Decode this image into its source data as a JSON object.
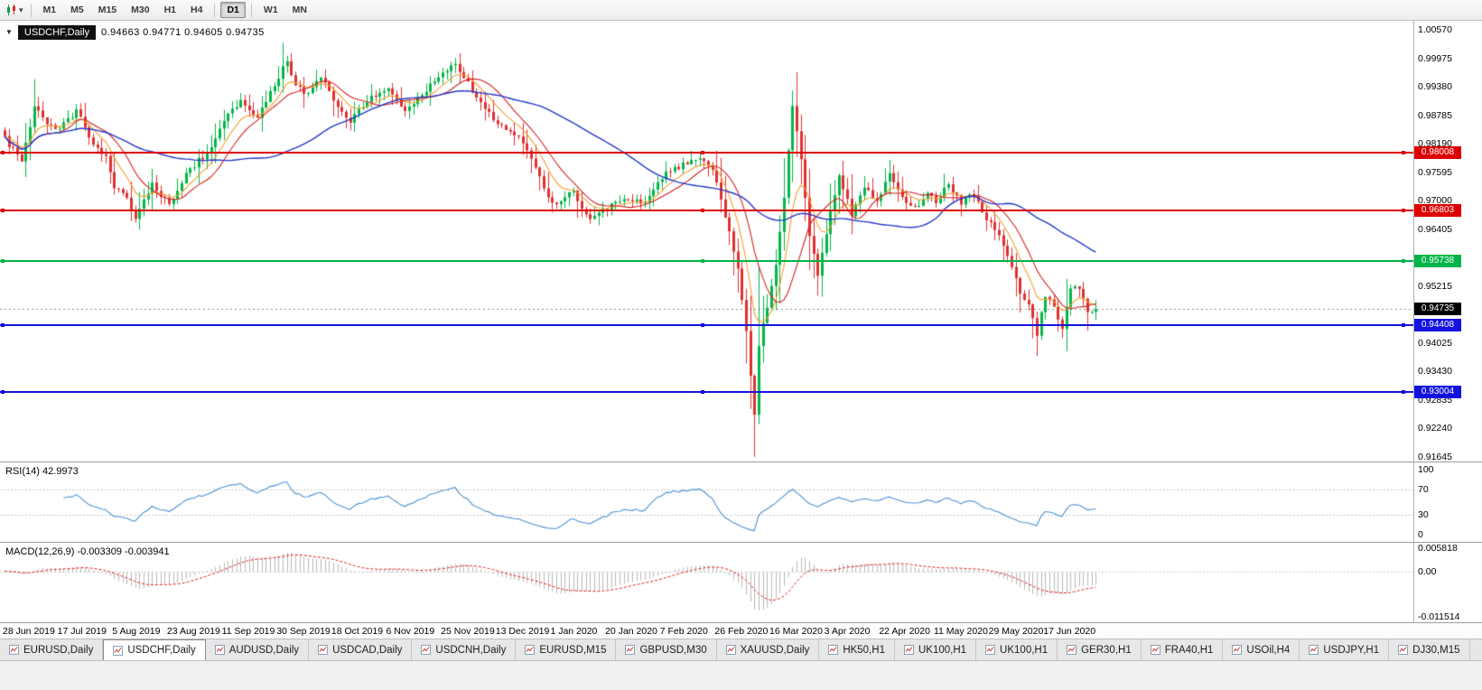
{
  "icons": {
    "toolbar_caret": "▾",
    "toolbar_chart_icon": "mini-candlestick",
    "chart_marker_icon": "▼",
    "tab_chart_icon": "mini-line-chart"
  },
  "toolbar": {
    "timeframes": [
      {
        "label": "M1",
        "active": false
      },
      {
        "label": "M5",
        "active": false
      },
      {
        "label": "M15",
        "active": false
      },
      {
        "label": "M30",
        "active": false
      },
      {
        "label": "H1",
        "active": false
      },
      {
        "label": "H4",
        "active": false,
        "group_end": true
      },
      {
        "label": "D1",
        "active": true,
        "group_end": true
      },
      {
        "label": "W1",
        "active": false
      },
      {
        "label": "MN",
        "active": false
      }
    ]
  },
  "chart": {
    "symbol_label": "USDCHF,Daily",
    "ohlc_text": "0.94663 0.94771 0.94605 0.94735",
    "open": "0.94663",
    "high": "0.94771",
    "low": "0.94605",
    "close": "0.94735"
  },
  "price_axis": {
    "min": 0.91645,
    "max": 1.0057,
    "labels": [
      {
        "label": "1.00570",
        "value": 1.0057
      },
      {
        "label": "0.99975",
        "value": 0.99975
      },
      {
        "label": "0.99380",
        "value": 0.9938
      },
      {
        "label": "0.98785",
        "value": 0.98785
      },
      {
        "label": "0.98190",
        "value": 0.9819
      },
      {
        "label": "0.97595",
        "value": 0.97595
      },
      {
        "label": "0.97000",
        "value": 0.97
      },
      {
        "label": "0.96405",
        "value": 0.96405
      },
      {
        "label": "0.95215",
        "value": 0.95215
      },
      {
        "label": "0.94025",
        "value": 0.94025
      },
      {
        "label": "0.93430",
        "value": 0.9343
      },
      {
        "label": "0.92835",
        "value": 0.92835
      },
      {
        "label": "0.92240",
        "value": 0.9224
      },
      {
        "label": "0.91645",
        "value": 0.91645
      }
    ]
  },
  "levels": [
    {
      "label": "0.98008",
      "value": 0.98008,
      "color": "#dd0000"
    },
    {
      "label": "0.96803",
      "value": 0.96803,
      "color": "#dd0000"
    },
    {
      "label": "0.95738",
      "value": 0.95738,
      "color": "#00b44a"
    },
    {
      "label": "0.94408",
      "value": 0.94408,
      "color": "#1313dd"
    },
    {
      "label": "0.93004",
      "value": 0.93004,
      "color": "#1313dd"
    }
  ],
  "current_price": {
    "label": "0.94735",
    "value": 0.94735,
    "color": "#000000"
  },
  "rsi": {
    "title": "RSI(14) 42.9973",
    "axis": [
      {
        "label": "100",
        "value": 100
      },
      {
        "label": "70",
        "value": 70
      },
      {
        "label": "30",
        "value": 30
      },
      {
        "label": "0",
        "value": 0
      }
    ],
    "guide_levels": [
      70,
      30
    ],
    "line_color": "#4a90d2"
  },
  "macd": {
    "title": "MACD(12,26,9) -0.003309 -0.003941",
    "axis": [
      {
        "label": "0.005818",
        "value": 0.005818
      },
      {
        "label": "0.00",
        "value": 0
      },
      {
        "label": "-0.011514",
        "value": -0.011514
      }
    ],
    "range_max": 0.005818,
    "range_min": -0.011514,
    "histogram_color": "#b8b8b8",
    "signal_color": "#e02020"
  },
  "date_axis": [
    "28 Jun 2019",
    "17 Jul 2019",
    "5 Aug 2019",
    "23 Aug 2019",
    "11 Sep 2019",
    "30 Sep 2019",
    "18 Oct 2019",
    "6 Nov 2019",
    "25 Nov 2019",
    "13 Dec 2019",
    "1 Jan 2020",
    "20 Jan 2020",
    "7 Feb 2020",
    "26 Feb 2020",
    "16 Mar 2020",
    "3 Apr 2020",
    "22 Apr 2020",
    "11 May 2020",
    "29 May 2020",
    "17 Jun 2020"
  ],
  "tabs": [
    {
      "label": "EURUSD,Daily",
      "active": false
    },
    {
      "label": "USDCHF,Daily",
      "active": true
    },
    {
      "label": "AUDUSD,Daily",
      "active": false
    },
    {
      "label": "USDCAD,Daily",
      "active": false
    },
    {
      "label": "USDCNH,Daily",
      "active": false
    },
    {
      "label": "EURUSD,M15",
      "active": false
    },
    {
      "label": "GBPUSD,M30",
      "active": false
    },
    {
      "label": "XAUUSD,Daily",
      "active": false
    },
    {
      "label": "HK50,H1",
      "active": false
    },
    {
      "label": "UK100,H1",
      "active": false
    },
    {
      "label": "UK100,H1",
      "active": false
    },
    {
      "label": "GER30,H1",
      "active": false
    },
    {
      "label": "FRA40,H1",
      "active": false
    },
    {
      "label": "USOil,H4",
      "active": false
    },
    {
      "label": "USDJPY,H1",
      "active": false
    },
    {
      "label": "DJ30,M15",
      "active": false
    }
  ],
  "chart_data": {
    "type": "candlestick",
    "symbol": "USDCHF",
    "timeframe": "Daily",
    "x_range": [
      "28 Jun 2019",
      "17 Jun 2020"
    ],
    "y_range": [
      0.91645,
      1.0057
    ],
    "candle_count": 260,
    "bars_per_date_label": 13,
    "close_anchors": [
      [
        0,
        0.983
      ],
      [
        4,
        0.978
      ],
      [
        7,
        0.99
      ],
      [
        10,
        0.9862
      ],
      [
        13,
        0.985
      ],
      [
        17,
        0.9888
      ],
      [
        21,
        0.982
      ],
      [
        24,
        0.9788
      ],
      [
        26,
        0.973
      ],
      [
        29,
        0.97
      ],
      [
        31,
        0.966
      ],
      [
        35,
        0.9738
      ],
      [
        39,
        0.969
      ],
      [
        44,
        0.9768
      ],
      [
        48,
        0.98
      ],
      [
        52,
        0.987
      ],
      [
        56,
        0.9906
      ],
      [
        60,
        0.9876
      ],
      [
        63,
        0.993
      ],
      [
        67,
        0.999
      ],
      [
        69,
        0.9944
      ],
      [
        71,
        0.992
      ],
      [
        75,
        0.9962
      ],
      [
        78,
        0.9906
      ],
      [
        82,
        0.9866
      ],
      [
        87,
        0.9916
      ],
      [
        91,
        0.9932
      ],
      [
        95,
        0.9882
      ],
      [
        100,
        0.993
      ],
      [
        104,
        0.9964
      ],
      [
        107,
        0.9988
      ],
      [
        111,
        0.993
      ],
      [
        117,
        0.986
      ],
      [
        122,
        0.9832
      ],
      [
        127,
        0.9752
      ],
      [
        130,
        0.9692
      ],
      [
        135,
        0.9716
      ],
      [
        139,
        0.9656
      ],
      [
        143,
        0.9686
      ],
      [
        148,
        0.9706
      ],
      [
        152,
        0.9692
      ],
      [
        156,
        0.975
      ],
      [
        161,
        0.9776
      ],
      [
        165,
        0.9792
      ],
      [
        168,
        0.9768
      ],
      [
        170,
        0.97
      ],
      [
        172,
        0.964
      ],
      [
        174,
        0.9558
      ],
      [
        176,
        0.943
      ],
      [
        177,
        0.933
      ],
      [
        178,
        0.9252
      ],
      [
        179,
        0.94
      ],
      [
        181,
        0.9482
      ],
      [
        183,
        0.956
      ],
      [
        185,
        0.97
      ],
      [
        187,
        0.9898
      ],
      [
        189,
        0.979
      ],
      [
        191,
        0.962
      ],
      [
        193,
        0.9545
      ],
      [
        196,
        0.968
      ],
      [
        198,
        0.9752
      ],
      [
        201,
        0.9672
      ],
      [
        204,
        0.973
      ],
      [
        207,
        0.97
      ],
      [
        210,
        0.9756
      ],
      [
        213,
        0.9706
      ],
      [
        216,
        0.9682
      ],
      [
        219,
        0.9722
      ],
      [
        221,
        0.97
      ],
      [
        224,
        0.9732
      ],
      [
        227,
        0.9696
      ],
      [
        230,
        0.9716
      ],
      [
        233,
        0.9662
      ],
      [
        236,
        0.9632
      ],
      [
        239,
        0.956
      ],
      [
        241,
        0.951
      ],
      [
        243,
        0.9482
      ],
      [
        245,
        0.942
      ],
      [
        247,
        0.9502
      ],
      [
        249,
        0.9482
      ],
      [
        251,
        0.9434
      ],
      [
        253,
        0.9512
      ],
      [
        255,
        0.9522
      ],
      [
        257,
        0.9466
      ],
      [
        259,
        0.94735
      ]
    ],
    "wick_lows": [
      [
        177,
        0.928
      ],
      [
        178,
        0.9165
      ],
      [
        245,
        0.9375
      ]
    ],
    "wick_highs": [
      [
        66,
        1.003
      ],
      [
        107,
        0.9998
      ],
      [
        187,
        0.992
      ]
    ],
    "up_color": "#00b746",
    "down_color": "#e03030",
    "ma_fast": {
      "period": 8,
      "color": "#f0a030"
    },
    "ma_mid": {
      "period": 13,
      "color": "#d42020"
    },
    "ma_slow": {
      "period": 45,
      "color": "#2438c8"
    }
  }
}
